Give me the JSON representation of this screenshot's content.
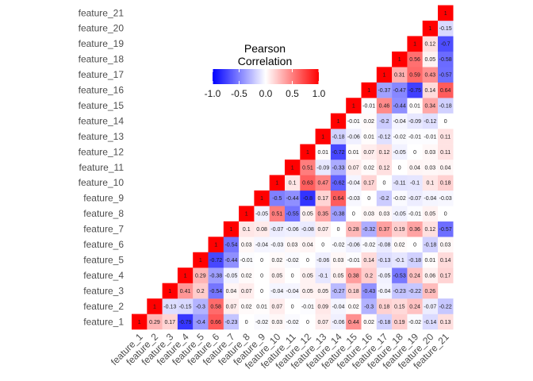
{
  "chart_data": {
    "type": "heatmap",
    "variables": [
      "feature_1",
      "feature_2",
      "feature_3",
      "feature_4",
      "feature_5",
      "feature_6",
      "feature_7",
      "feature_8",
      "feature_9",
      "feature_10",
      "feature_11",
      "feature_12",
      "feature_13",
      "feature_14",
      "feature_15",
      "feature_16",
      "feature_17",
      "feature_18",
      "feature_19",
      "feature_20",
      "feature_21"
    ],
    "triangle": "upper",
    "values_by_row": [
      [
        1,
        0.29,
        0.17,
        -0.79,
        -0.4,
        0.66,
        -0.23,
        0,
        -0.02,
        0.03,
        -0.02,
        0,
        0.07,
        -0.06,
        0.44,
        0.02,
        -0.18,
        0.19,
        -0.02,
        -0.14,
        0.13
      ],
      [
        1,
        -0.13,
        -0.15,
        -0.3,
        0.58,
        0.07,
        0.02,
        0.01,
        0.07,
        0,
        -0.01,
        0.09,
        -0.04,
        0.02,
        -0.3,
        0.18,
        0.15,
        0.24,
        -0.07,
        -0.22
      ],
      [
        1,
        0.41,
        0.2,
        -0.54,
        0.04,
        0.07,
        0,
        -0.04,
        -0.04,
        0.05,
        0.05,
        -0.27,
        0.18,
        -0.43,
        -0.04,
        -0.23,
        -0.22,
        0.26
      ],
      [
        1,
        0.29,
        -0.38,
        -0.05,
        0.02,
        0,
        0.05,
        0,
        0.05,
        -0.1,
        0.05,
        0.38,
        0.2,
        -0.05,
        -0.53,
        0.24,
        0.06,
        0.17
      ],
      [
        1,
        -0.72,
        -0.44,
        -0.01,
        0,
        0.02,
        -0.02,
        0,
        -0.06,
        0.03,
        -0.01,
        0.14,
        -0.13,
        -0.1,
        -0.18,
        0.01,
        0.14
      ],
      [
        1,
        -0.54,
        0.03,
        -0.04,
        -0.03,
        0.03,
        0.04,
        0,
        -0.02,
        -0.06,
        -0.02,
        -0.08,
        0.02,
        0,
        -0.18,
        0.03
      ],
      [
        1,
        0.1,
        0.08,
        -0.07,
        -0.06,
        -0.08,
        0.07,
        0,
        0.28,
        -0.32,
        0.37,
        0.19,
        0.36,
        0.12,
        -0.57
      ],
      [
        1,
        -0.05,
        0.51,
        -0.55,
        0.05,
        0.35,
        -0.38,
        0,
        0.03,
        0.03,
        -0.05,
        -0.01,
        0.05,
        0
      ],
      [
        1,
        -0.5,
        -0.44,
        -0.8,
        0.17,
        0.64,
        -0.03,
        0,
        -0.2,
        -0.02,
        -0.07,
        -0.04,
        -0.03
      ],
      [
        1,
        0.1,
        0.63,
        0.47,
        -0.62,
        -0.04,
        0.17,
        0,
        -0.11,
        -0.1,
        0.1,
        0.18
      ],
      [
        1,
        0.51,
        -0.09,
        -0.33,
        0.07,
        0.02,
        0.12,
        0,
        0.04,
        0.03,
        0.04
      ],
      [
        1,
        0.01,
        -0.72,
        0.01,
        0.07,
        0.12,
        -0.05,
        0,
        0.03,
        0.11
      ],
      [
        1,
        -0.18,
        -0.06,
        0.01,
        -0.12,
        -0.02,
        -0.01,
        -0.01,
        0.11
      ],
      [
        1,
        -0.01,
        0.02,
        -0.2,
        -0.04,
        -0.09,
        -0.12,
        0
      ],
      [
        1,
        -0.01,
        0.46,
        -0.44,
        0.01,
        0.34,
        -0.18
      ],
      [
        1,
        -0.37,
        -0.47,
        -0.75,
        0.14,
        0.64
      ],
      [
        1,
        0.31,
        0.59,
        0.43,
        -0.57
      ],
      [
        1,
        0.56,
        0.05,
        -0.58
      ],
      [
        1,
        0.12,
        -0.7
      ],
      [
        1,
        -0.15
      ],
      [
        1
      ]
    ],
    "legend": {
      "title_line1": "Pearson",
      "title_line2": "Correlation",
      "ticks": [
        "-1.0",
        "-0.5",
        "0.0",
        "0.5",
        "1.0"
      ],
      "tick_values": [
        -1,
        -0.5,
        0,
        0.5,
        1
      ],
      "placement": "top-center"
    },
    "color_low": "#0000ff",
    "color_mid": "#ffffff",
    "color_high": "#ff0000",
    "value_range": [
      -1,
      1
    ],
    "show_values": true,
    "grid": false
  }
}
